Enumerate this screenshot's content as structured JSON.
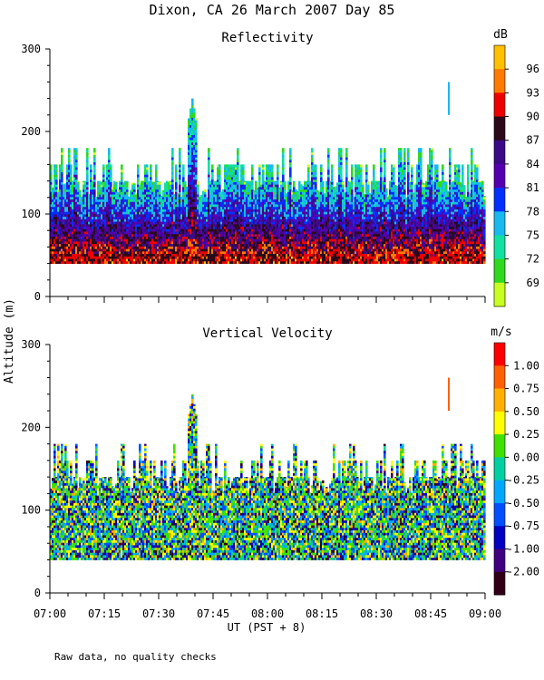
{
  "figure": {
    "title": "Dixon, CA 26 March 2007  Day  85",
    "ylabel": "Altitude (m)",
    "xlabel": "UT  (PST + 8)",
    "footnote": "Raw data, no quality checks",
    "xticks": [
      "07:00",
      "07:15",
      "07:30",
      "07:45",
      "08:00",
      "08:15",
      "08:30",
      "08:45",
      "09:00"
    ]
  },
  "chart_data": [
    {
      "type": "heatmap",
      "title": "Reflectivity",
      "x_range": [
        "07:00",
        "09:00"
      ],
      "ylim": [
        0,
        300
      ],
      "yticks": [
        0,
        100,
        200,
        300
      ],
      "data_base_m": 40,
      "typical_top_m": [
        140,
        180
      ],
      "peak_echo_tops": [
        {
          "time": "07:39",
          "altitude_m": 240
        },
        {
          "time": "08:50",
          "altitude_m": 260
        }
      ],
      "colorbar": {
        "unit": "dB",
        "labels": [
          96,
          93,
          90,
          87,
          84,
          81,
          78,
          75,
          72,
          69
        ],
        "colors": [
          "#ffc000",
          "#ff7a00",
          "#ee0000",
          "#2a0a1a",
          "#3a0a88",
          "#5500b0",
          "#0030ff",
          "#18b8f0",
          "#10e0a0",
          "#30d820",
          "#c8ff20"
        ]
      }
    },
    {
      "type": "heatmap",
      "title": "Vertical Velocity",
      "x_range": [
        "07:00",
        "09:00"
      ],
      "ylim": [
        0,
        300
      ],
      "yticks": [
        0,
        100,
        200,
        300
      ],
      "data_base_m": 40,
      "typical_top_m": [
        140,
        180
      ],
      "peak_echo_tops": [
        {
          "time": "07:39",
          "altitude_m": 240
        },
        {
          "time": "08:50",
          "altitude_m": 260
        }
      ],
      "colorbar": {
        "unit": "m/s",
        "labels": [
          "1.00",
          "0.75",
          "0.50",
          "0.25",
          "0.00",
          "-0.25",
          "-0.50",
          "-0.75",
          "-1.00",
          "-2.00"
        ],
        "colors": [
          "#ff0000",
          "#ff6000",
          "#ffb000",
          "#ffff00",
          "#40e000",
          "#00d0a0",
          "#00a8ff",
          "#0050ff",
          "#0000c0",
          "#400080",
          "#300018"
        ]
      }
    }
  ]
}
